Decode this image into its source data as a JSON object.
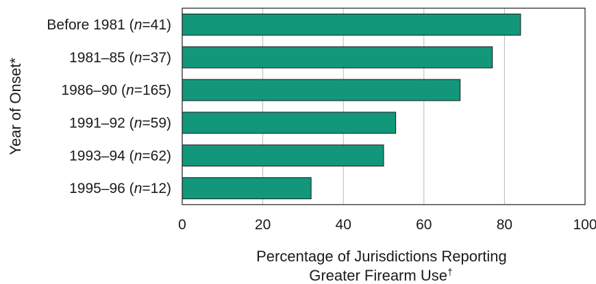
{
  "chart_data": {
    "type": "bar",
    "orientation": "horizontal",
    "categories": [
      {
        "label": "Before 1981",
        "n": "41"
      },
      {
        "label": "1981–85",
        "n": "37"
      },
      {
        "label": "1986–90",
        "n": "165"
      },
      {
        "label": "1991–92",
        "n": "59"
      },
      {
        "label": "1993–94",
        "n": "62"
      },
      {
        "label": "1995–96",
        "n": "12"
      }
    ],
    "values": [
      84,
      77,
      69,
      53,
      50,
      32
    ],
    "xlim": [
      0,
      100
    ],
    "xticks": [
      0,
      20,
      40,
      60,
      80,
      100
    ],
    "xlabel_line1": "Percentage of Jurisdictions Reporting",
    "xlabel_line2": "Greater Firearm Use",
    "xlabel_mark": "†",
    "ylabel": "Year of Onset*",
    "n_symbol": "n",
    "gridlines": true,
    "bar_color": "#12977a",
    "bar_edge_color": "#1a1a1a",
    "grid_color": "#b8b8b8"
  }
}
